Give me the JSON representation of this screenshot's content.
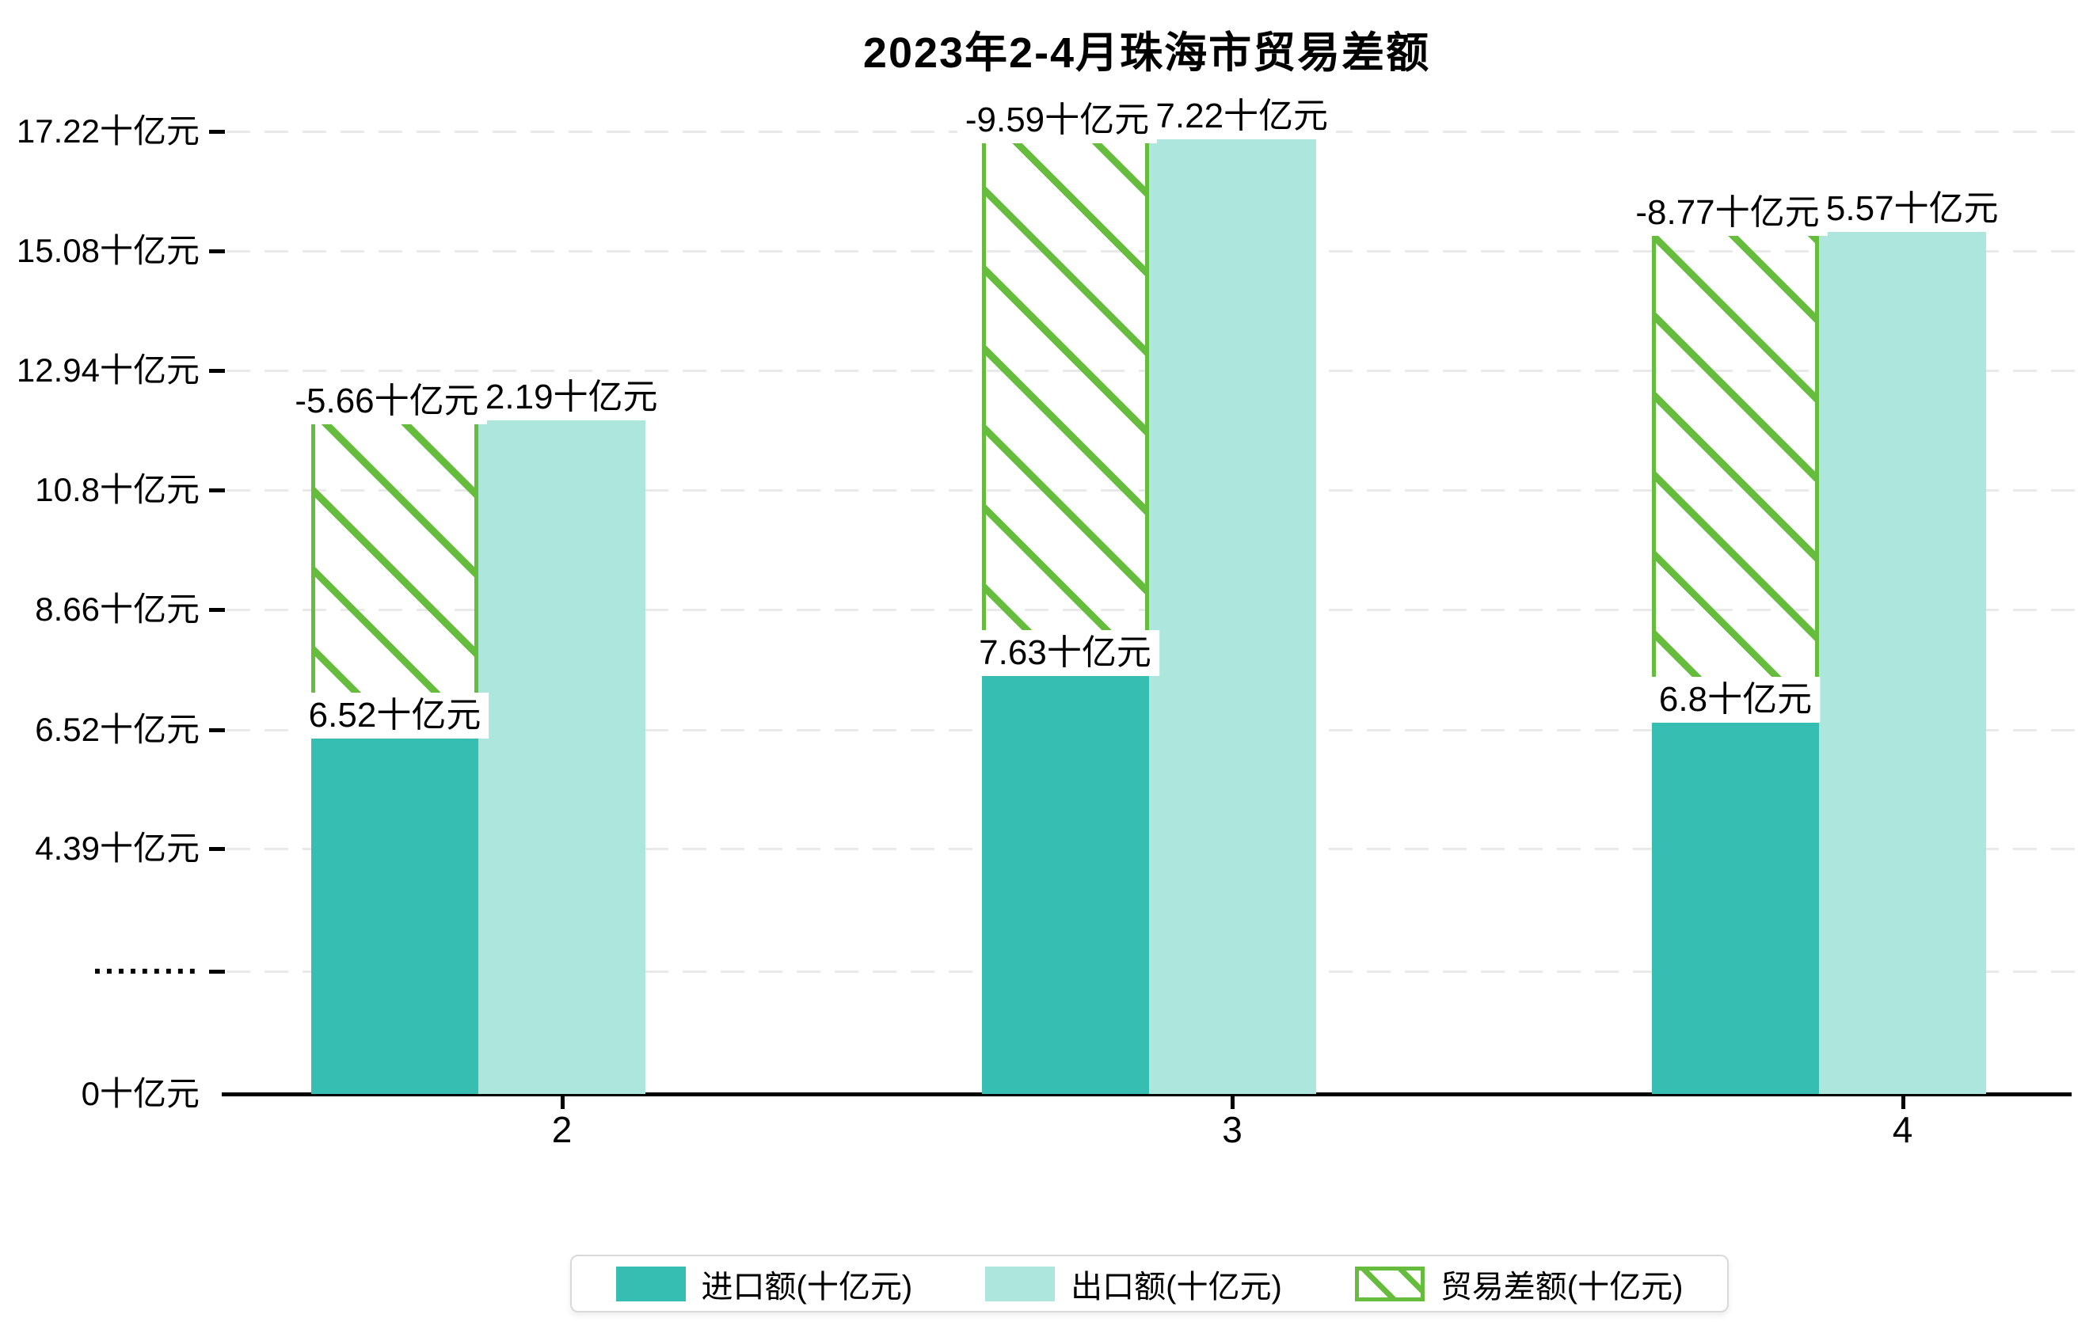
{
  "title": {
    "text": "2023年2-4月珠海市贸易差额"
  },
  "chart_data": {
    "type": "bar",
    "title": "2023年2-4月珠海市贸易差额",
    "categories": [
      "2",
      "3",
      "4"
    ],
    "unit": "十亿元",
    "series": [
      {
        "name": "进口额(十亿元)",
        "style": "solid",
        "color": "#35BEB1",
        "values": [
          6.52,
          7.63,
          6.8
        ],
        "data_labels": [
          "6.52十亿元",
          "7.63十亿元",
          "6.8十亿元"
        ]
      },
      {
        "name": "出口额(十亿元)",
        "style": "solid",
        "color": "#ACE6DC",
        "values": [
          12.19,
          17.22,
          15.57
        ],
        "data_labels": [
          "12.19十亿元",
          "17.22十亿元",
          "15.57十亿元"
        ]
      },
      {
        "name": "贸易差额(十亿元)",
        "style": "hatched-outline",
        "color": "#66BD3D",
        "values": [
          -5.66,
          -9.59,
          -8.77
        ],
        "data_labels": [
          "-5.66十亿元",
          "-9.59十亿元",
          "-8.77十亿元"
        ]
      }
    ],
    "y_axis": {
      "min": 0,
      "max": 17.22,
      "grid": "dashed",
      "ticks": [
        {
          "value": 0,
          "label": "0十亿元"
        },
        {
          "value": 2.2,
          "label": "·········"
        },
        {
          "value": 4.39,
          "label": "4.39十亿元"
        },
        {
          "value": 6.52,
          "label": "6.52十亿元"
        },
        {
          "value": 8.66,
          "label": "8.66十亿元"
        },
        {
          "value": 10.8,
          "label": "10.8十亿元"
        },
        {
          "value": 12.94,
          "label": "12.94十亿元"
        },
        {
          "value": 15.08,
          "label": "15.08十亿元"
        },
        {
          "value": 17.22,
          "label": "17.22十亿元"
        }
      ]
    },
    "x_axis": {
      "tick_labels": [
        "2",
        "3",
        "4"
      ]
    },
    "legend": {
      "position": "bottom",
      "items": [
        "进口额(十亿元)",
        "出口额(十亿元)",
        "贸易差额(十亿元)"
      ]
    },
    "colors": {
      "import_bar": "#35BEB1",
      "export_bar": "#ACE6DC",
      "balance_hatch": "#66BD3D",
      "gridline": "#E9E9E9",
      "axis": "#000000",
      "label_background": "#FFFFFF",
      "text": "#000000"
    }
  }
}
